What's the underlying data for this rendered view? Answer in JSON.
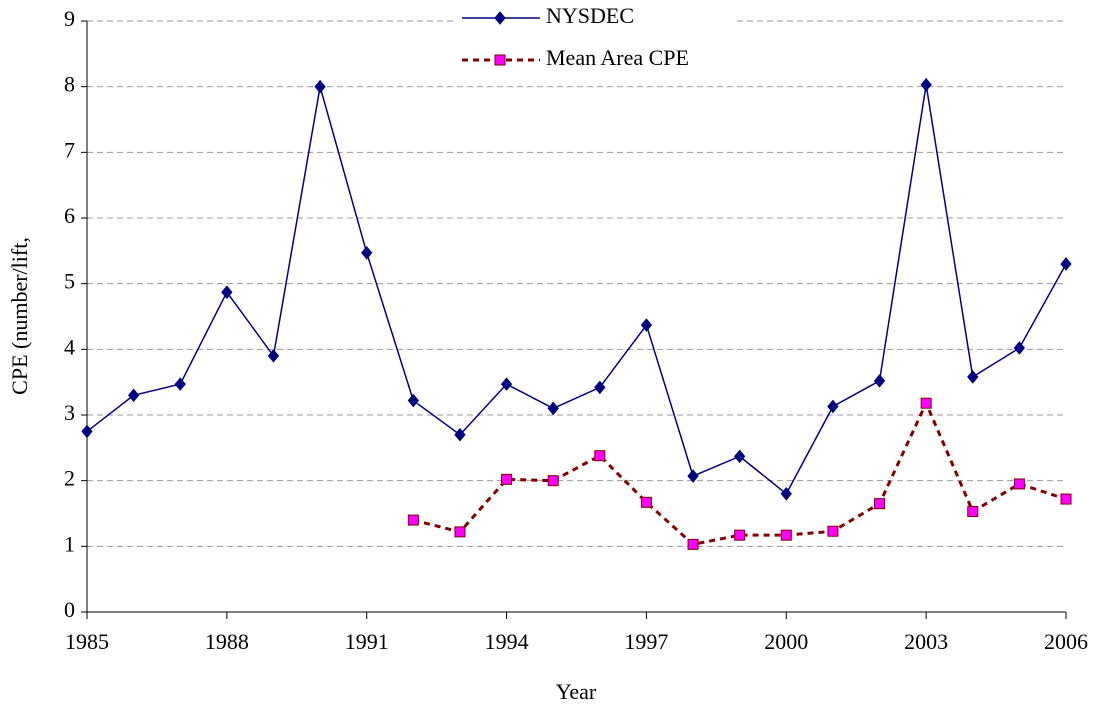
{
  "chart_data": {
    "type": "line",
    "x_label": "Year",
    "y_label": "CPE (number/lift,",
    "x": [
      1985,
      1986,
      1987,
      1988,
      1989,
      1990,
      1991,
      1992,
      1993,
      1994,
      1995,
      1996,
      1997,
      1998,
      1999,
      2000,
      2001,
      2002,
      2003,
      2004,
      2005,
      2006
    ],
    "series": [
      {
        "name": "NYSDEC",
        "color": "#000080",
        "marker": "diamond",
        "marker_fill": "#000080",
        "dashed": false,
        "values": [
          2.75,
          3.3,
          3.47,
          4.87,
          3.9,
          8.0,
          5.47,
          3.22,
          2.7,
          3.47,
          3.1,
          3.42,
          4.37,
          2.07,
          2.37,
          1.8,
          3.13,
          3.52,
          8.03,
          3.58,
          4.02,
          5.3
        ]
      },
      {
        "name": "Mean Area CPE",
        "color": "#800000",
        "marker": "square",
        "marker_fill": "#ff00ff",
        "dashed": true,
        "values": [
          null,
          null,
          null,
          null,
          null,
          null,
          null,
          1.4,
          1.22,
          2.02,
          2.0,
          2.38,
          1.67,
          1.03,
          1.17,
          1.17,
          1.23,
          1.65,
          3.18,
          1.53,
          1.95,
          1.72
        ]
      }
    ],
    "xlim": [
      1985,
      2006
    ],
    "xticks": [
      1985,
      1988,
      1991,
      1994,
      1997,
      2000,
      2003,
      2006
    ],
    "ylim": [
      0,
      9
    ],
    "yticks": [
      0,
      1,
      2,
      3,
      4,
      5,
      6,
      7,
      8,
      9
    ],
    "grid": true,
    "legend": "top"
  }
}
